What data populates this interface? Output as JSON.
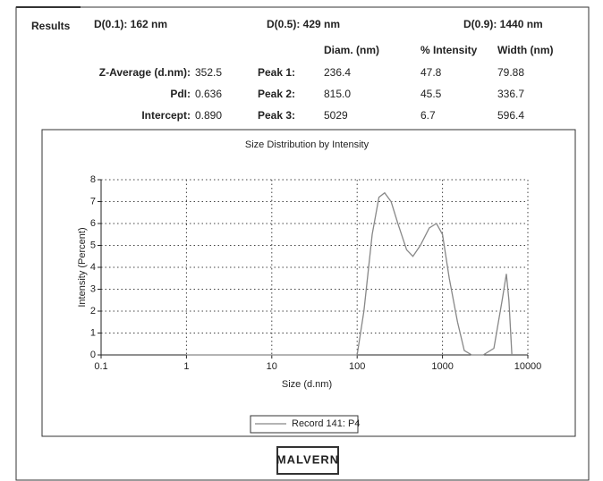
{
  "header": {
    "title": "Results",
    "stats": [
      "D(0.1): 162  nm",
      "D(0.5): 429  nm",
      "D(0.9): 1440 nm"
    ]
  },
  "table": {
    "columns": [
      "Diam. (nm)",
      "% Intensity",
      "Width (nm)"
    ],
    "summary": [
      {
        "label": "Z-Average (d.nm):",
        "value": "352.5"
      },
      {
        "label": "PdI:",
        "value": "0.636"
      },
      {
        "label": "Intercept:",
        "value": "0.890"
      }
    ],
    "peaks": [
      {
        "label": "Peak 1:",
        "values": [
          "236.4",
          "47.8",
          "79.88"
        ]
      },
      {
        "label": "Peak 2:",
        "values": [
          "815.0",
          "45.5",
          "336.7"
        ]
      },
      {
        "label": "Peak 3:",
        "values": [
          "5029",
          "6.7",
          "596.4"
        ]
      }
    ]
  },
  "chart_data": {
    "type": "line",
    "title": "Size Distribution by Intensity",
    "xlabel": "Size (d.nm)",
    "ylabel": "Intensity (Percent)",
    "xscale": "log",
    "grid": true,
    "xlim": [
      0.1,
      10000
    ],
    "xticks": [
      0.1,
      1,
      10,
      100,
      1000,
      10000
    ],
    "ylim": [
      0,
      8
    ],
    "yticks": [
      0,
      1,
      2,
      3,
      4,
      5,
      6,
      7,
      8
    ],
    "x": [
      1,
      100,
      120,
      150,
      180,
      210,
      250,
      300,
      380,
      450,
      550,
      700,
      850,
      1000,
      1200,
      1500,
      1800,
      2200,
      3000,
      4000,
      5000,
      5600,
      6000,
      6500
    ],
    "series": [
      {
        "name": "Record 141: P4",
        "color": "#888888",
        "values": [
          0,
          0,
          2,
          5.5,
          7.2,
          7.4,
          7,
          6,
          4.8,
          4.5,
          5,
          5.8,
          6,
          5.5,
          3.5,
          1.5,
          0.2,
          0,
          0,
          0.3,
          2.5,
          3.7,
          2.5,
          0
        ]
      }
    ]
  },
  "footer": {
    "logo": "MALVERN"
  }
}
